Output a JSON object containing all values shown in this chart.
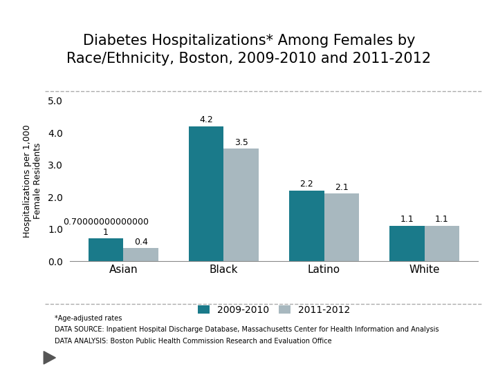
{
  "title_line1": "Diabetes Hospitalizations* Among Females by",
  "title_line2": "Race/Ethnicity, Boston, 2009-2010 and 2011-2012",
  "categories": [
    "Asian",
    "Black",
    "Latino",
    "White"
  ],
  "values_2009": [
    0.7,
    4.2,
    2.2,
    1.1
  ],
  "values_2011": [
    0.4,
    3.5,
    2.1,
    1.1
  ],
  "labels_2009": [
    "0.70000000000000\n1",
    "4.2",
    "2.2",
    "1.1"
  ],
  "labels_2011": [
    "0.4",
    "3.5",
    "2.1",
    "1.1"
  ],
  "color_2009": "#1a7a8a",
  "color_2011": "#a8b8bf",
  "ylabel": "Hospitalizations per 1,000\nFemale Residents",
  "ylim": [
    0.0,
    5.0
  ],
  "yticks": [
    0.0,
    1.0,
    2.0,
    3.0,
    4.0,
    5.0
  ],
  "legend_labels": [
    "2009-2010",
    "2011-2012"
  ],
  "footnote1": "*Age-adjusted rates",
  "footnote2": "DATA SOURCE: Inpatient Hospital Discharge Database, Massachusetts Center for Health Information and Analysis",
  "footnote3": "DATA ANALYSIS: Boston Public Health Commission Research and Evaluation Office",
  "bg_color": "#ffffff",
  "title_fontsize": 15,
  "axis_label_fontsize": 9,
  "tick_fontsize": 10,
  "bar_label_fontsize": 9,
  "legend_fontsize": 10,
  "footnote_fontsize": 7,
  "bar_width": 0.35,
  "separator_color": "#aaaaaa",
  "separator_lw": 1.0
}
